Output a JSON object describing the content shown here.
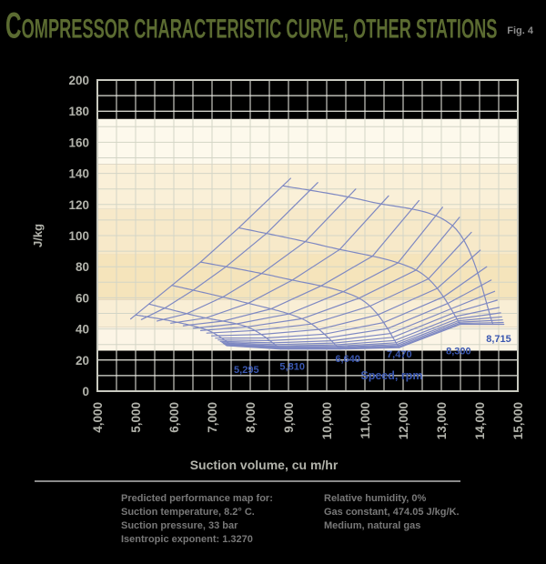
{
  "header": {
    "title": "Compressor characteristic curve, other stations",
    "fig_label": "Fig. 4"
  },
  "chart_data": {
    "type": "line",
    "title": "Compressor characteristic curve, other stations",
    "xlabel": "Suction volume, cu m/hr",
    "ylabel": "J/kg",
    "xlim": [
      4000,
      15000
    ],
    "ylim": [
      0,
      200
    ],
    "x_tick_step": 1000,
    "y_tick_step": 20,
    "x_minor_step": 500,
    "y_minor_step": 10,
    "grid": true,
    "speed_axis_label": "Speed, rpm",
    "series": [
      {
        "name": "5,295",
        "rpm": 5295,
        "label_pos": [
          7900,
          14
        ],
        "points": [
          [
            5000,
            49
          ],
          [
            5950,
            45
          ],
          [
            6900,
            39
          ],
          [
            7550,
            29
          ]
        ]
      },
      {
        "name": "5,810",
        "rpm": 5810,
        "label_pos": [
          9100,
          16
        ],
        "points": [
          [
            5350,
            56
          ],
          [
            6650,
            48
          ],
          [
            7950,
            41
          ],
          [
            8800,
            27
          ]
        ]
      },
      {
        "name": "6,640",
        "rpm": 6640,
        "label_pos": [
          10550,
          21
        ],
        "points": [
          [
            5950,
            68
          ],
          [
            7700,
            58
          ],
          [
            9400,
            46
          ],
          [
            10350,
            27
          ]
        ]
      },
      {
        "name": "7,470",
        "rpm": 7470,
        "label_pos": [
          11900,
          24
        ],
        "points": [
          [
            6700,
            83
          ],
          [
            8800,
            73
          ],
          [
            10900,
            59
          ],
          [
            11900,
            28
          ]
        ]
      },
      {
        "name": "8,300",
        "rpm": 8300,
        "label_pos": [
          13450,
          26
        ],
        "points": [
          [
            7700,
            105
          ],
          [
            10000,
            93
          ],
          [
            12400,
            77
          ],
          [
            13500,
            43
          ]
        ]
      },
      {
        "name": "8,715",
        "rpm": 8715,
        "label_pos": [
          14500,
          34
        ],
        "points": [
          [
            8850,
            132
          ],
          [
            11100,
            122
          ],
          [
            13350,
            105
          ],
          [
            14350,
            43
          ]
        ]
      }
    ],
    "fan_fractions": [
      0,
      0.13,
      0.26,
      0.38,
      0.49,
      0.58,
      0.655,
      0.72,
      0.775,
      0.82,
      0.855,
      0.885,
      0.91,
      0.932,
      0.95,
      0.965,
      0.978,
      0.99,
      1.0
    ],
    "bands": [
      {
        "from": 175,
        "to": 200,
        "color": "#000000"
      },
      {
        "from": 146,
        "to": 175,
        "color": "#FDF9EC"
      },
      {
        "from": 117,
        "to": 146,
        "color": "#FAF0D8"
      },
      {
        "from": 88,
        "to": 117,
        "color": "#F7E9C9"
      },
      {
        "from": 59,
        "to": 88,
        "color": "#F5E4BB"
      },
      {
        "from": 41,
        "to": 59,
        "color": "#F9EED5"
      },
      {
        "from": 26,
        "to": 41,
        "color": "#FCF5E6"
      },
      {
        "from": 0,
        "to": 26,
        "color": "#000000"
      }
    ],
    "colors": {
      "curve": "#7E88C2",
      "speed_label": "#3A57B0",
      "grid": "#d3d5c6",
      "grid_on_black": "#efefe8",
      "frame": "#c9cac0",
      "axis_text": "#b2b3ab"
    }
  },
  "captions": {
    "left": [
      "Predicted performance map for:",
      "Suction temperature, 8.2° C.",
      "Suction pressure, 33 bar",
      "Isentropic exponent:  1.3270"
    ],
    "right": [
      "Relative humidity, 0%",
      "Gas constant, 474.05 J/kg/K.",
      "Medium, natural gas"
    ]
  }
}
